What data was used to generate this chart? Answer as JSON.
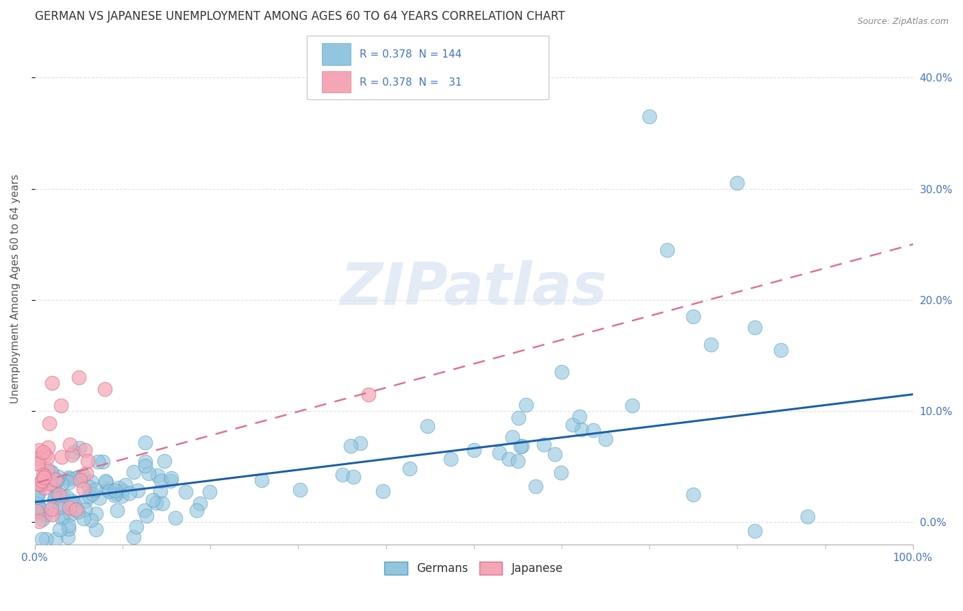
{
  "title": "GERMAN VS JAPANESE UNEMPLOYMENT AMONG AGES 60 TO 64 YEARS CORRELATION CHART",
  "source": "Source: ZipAtlas.com",
  "ylabel": "Unemployment Among Ages 60 to 64 years",
  "xlim": [
    0,
    1.0
  ],
  "ylim": [
    -0.02,
    0.44
  ],
  "xtick_positions": [
    0.0,
    1.0
  ],
  "xtick_labels": [
    "0.0%",
    "100.0%"
  ],
  "xtick_minor_positions": [
    0.1,
    0.2,
    0.3,
    0.4,
    0.5,
    0.6,
    0.7,
    0.8,
    0.9
  ],
  "yticks": [
    0.0,
    0.1,
    0.2,
    0.3,
    0.4
  ],
  "ytick_labels": [
    "0.0%",
    "10.0%",
    "20.0%",
    "30.0%",
    "40.0%"
  ],
  "german_color": "#92c5de",
  "german_edge_color": "#5b9fc0",
  "japanese_color": "#f4a6b4",
  "japanese_edge_color": "#e07090",
  "german_line_color": "#1a5fa8",
  "japanese_line_color": "#e07090",
  "german_R": 0.378,
  "german_N": 144,
  "japanese_R": 0.378,
  "japanese_N": 31,
  "watermark": "ZIPatlas",
  "legend_labels": [
    "Germans",
    "Japanese"
  ],
  "title_fontsize": 12,
  "axis_label_fontsize": 11,
  "tick_fontsize": 11,
  "tick_color": "#4472c4",
  "german_line_start_y": 0.018,
  "german_line_end_y": 0.115,
  "japanese_line_start_y": 0.035,
  "japanese_line_end_y": 0.25
}
